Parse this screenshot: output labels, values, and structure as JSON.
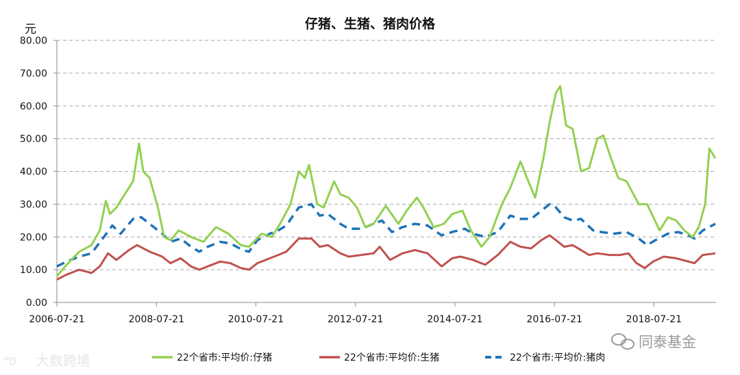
{
  "chart_data": {
    "type": "line",
    "title": "仔猪、生猪、猪肉价格",
    "ylabel": "元",
    "xlabel": "",
    "ylim": [
      0,
      80
    ],
    "y_ticks": [
      "0.00",
      "10.00",
      "20.00",
      "30.00",
      "40.00",
      "50.00",
      "60.00",
      "70.00",
      "80.00"
    ],
    "x_ticks": [
      "2006-07-21",
      "2008-07-21",
      "2010-07-21",
      "2012-07-21",
      "2014-07-21",
      "2016-07-21",
      "2018-07-21"
    ],
    "grid": "horizontal-dashed",
    "legend_position": "bottom",
    "series": [
      {
        "name": "22个省市:平均价:仔猪",
        "color": "#92D050",
        "style": "solid",
        "points": [
          [
            "2006-07-21",
            8.0
          ],
          [
            "2006-10-01",
            11.5
          ],
          [
            "2007-01-01",
            15.5
          ],
          [
            "2007-04-01",
            17.5
          ],
          [
            "2007-06-01",
            22.0
          ],
          [
            "2007-07-15",
            31.0
          ],
          [
            "2007-08-15",
            27.0
          ],
          [
            "2007-10-01",
            29.0
          ],
          [
            "2007-12-01",
            33.0
          ],
          [
            "2008-02-01",
            37.0
          ],
          [
            "2008-03-15",
            48.5
          ],
          [
            "2008-04-15",
            40.0
          ],
          [
            "2008-06-01",
            38.0
          ],
          [
            "2008-08-01",
            29.0
          ],
          [
            "2008-09-15",
            20.0
          ],
          [
            "2008-11-01",
            19.0
          ],
          [
            "2009-01-01",
            22.0
          ],
          [
            "2009-04-01",
            20.0
          ],
          [
            "2009-07-01",
            18.5
          ],
          [
            "2009-10-01",
            23.0
          ],
          [
            "2010-01-01",
            21.0
          ],
          [
            "2010-04-01",
            17.5
          ],
          [
            "2010-06-01",
            17.0
          ],
          [
            "2010-09-01",
            21.0
          ],
          [
            "2010-11-15",
            20.0
          ],
          [
            "2011-01-15",
            24.0
          ],
          [
            "2011-04-01",
            30.0
          ],
          [
            "2011-06-01",
            40.0
          ],
          [
            "2011-07-15",
            38.0
          ],
          [
            "2011-08-15",
            42.0
          ],
          [
            "2011-10-15",
            30.0
          ],
          [
            "2011-12-01",
            29.0
          ],
          [
            "2012-02-15",
            37.0
          ],
          [
            "2012-04-01",
            33.0
          ],
          [
            "2012-06-01",
            32.0
          ],
          [
            "2012-08-01",
            29.0
          ],
          [
            "2012-10-01",
            23.0
          ],
          [
            "2012-12-01",
            24.0
          ],
          [
            "2013-03-01",
            29.5
          ],
          [
            "2013-06-01",
            24.0
          ],
          [
            "2013-08-01",
            28.0
          ],
          [
            "2013-10-15",
            32.0
          ],
          [
            "2013-12-01",
            29.0
          ],
          [
            "2014-02-15",
            23.0
          ],
          [
            "2014-05-01",
            24.0
          ],
          [
            "2014-07-01",
            27.0
          ],
          [
            "2014-09-15",
            28.0
          ],
          [
            "2014-11-15",
            22.0
          ],
          [
            "2015-02-01",
            17.0
          ],
          [
            "2015-04-01",
            20.0
          ],
          [
            "2015-07-01",
            30.0
          ],
          [
            "2015-09-01",
            35.0
          ],
          [
            "2015-11-15",
            43.0
          ],
          [
            "2016-01-01",
            38.0
          ],
          [
            "2016-03-01",
            32.0
          ],
          [
            "2016-05-01",
            44.0
          ],
          [
            "2016-06-15",
            55.0
          ],
          [
            "2016-08-01",
            64.0
          ],
          [
            "2016-09-01",
            66.0
          ],
          [
            "2016-10-15",
            54.0
          ],
          [
            "2016-12-01",
            53.0
          ],
          [
            "2017-02-01",
            40.0
          ],
          [
            "2017-04-01",
            41.0
          ],
          [
            "2017-06-01",
            50.0
          ],
          [
            "2017-07-15",
            51.0
          ],
          [
            "2017-09-01",
            45.0
          ],
          [
            "2017-11-01",
            38.0
          ],
          [
            "2018-01-01",
            37.0
          ],
          [
            "2018-04-01",
            30.0
          ],
          [
            "2018-06-01",
            30.0
          ],
          [
            "2018-09-01",
            22.0
          ],
          [
            "2018-11-01",
            26.0
          ],
          [
            "2019-01-01",
            25.0
          ],
          [
            "2019-03-01",
            22.0
          ],
          [
            "2019-05-01",
            20.0
          ],
          [
            "2019-06-15",
            23.0
          ],
          [
            "2019-08-01",
            30.0
          ],
          [
            "2019-09-01",
            47.0
          ],
          [
            "2019-10-15",
            44.0
          ]
        ]
      },
      {
        "name": "22个省市:平均价:生猪",
        "color": "#C0504D",
        "style": "solid",
        "points": [
          [
            "2006-07-21",
            7.0
          ],
          [
            "2006-10-01",
            8.5
          ],
          [
            "2007-01-01",
            10.0
          ],
          [
            "2007-04-01",
            9.0
          ],
          [
            "2007-06-01",
            11.0
          ],
          [
            "2007-08-01",
            15.0
          ],
          [
            "2007-10-01",
            13.0
          ],
          [
            "2008-01-01",
            16.0
          ],
          [
            "2008-03-01",
            17.5
          ],
          [
            "2008-06-01",
            15.5
          ],
          [
            "2008-09-01",
            14.0
          ],
          [
            "2008-11-01",
            12.0
          ],
          [
            "2009-01-15",
            13.5
          ],
          [
            "2009-04-01",
            11.0
          ],
          [
            "2009-06-01",
            10.0
          ],
          [
            "2009-08-01",
            11.0
          ],
          [
            "2009-11-01",
            12.5
          ],
          [
            "2010-01-15",
            12.0
          ],
          [
            "2010-04-01",
            10.5
          ],
          [
            "2010-06-01",
            10.0
          ],
          [
            "2010-08-01",
            12.0
          ],
          [
            "2010-11-01",
            13.5
          ],
          [
            "2011-01-01",
            14.5
          ],
          [
            "2011-03-01",
            15.5
          ],
          [
            "2011-06-01",
            19.5
          ],
          [
            "2011-09-01",
            19.5
          ],
          [
            "2011-11-01",
            17.0
          ],
          [
            "2012-01-01",
            17.5
          ],
          [
            "2012-04-01",
            15.0
          ],
          [
            "2012-06-01",
            14.0
          ],
          [
            "2012-09-01",
            14.5
          ],
          [
            "2012-12-01",
            15.0
          ],
          [
            "2013-01-15",
            17.0
          ],
          [
            "2013-04-01",
            13.0
          ],
          [
            "2013-07-01",
            15.0
          ],
          [
            "2013-10-01",
            16.0
          ],
          [
            "2014-01-01",
            15.0
          ],
          [
            "2014-04-15",
            11.0
          ],
          [
            "2014-07-01",
            13.5
          ],
          [
            "2014-09-01",
            14.0
          ],
          [
            "2014-12-01",
            13.0
          ],
          [
            "2015-03-01",
            11.5
          ],
          [
            "2015-06-01",
            14.5
          ],
          [
            "2015-09-01",
            18.5
          ],
          [
            "2015-11-15",
            17.0
          ],
          [
            "2016-02-01",
            16.5
          ],
          [
            "2016-04-15",
            19.0
          ],
          [
            "2016-06-15",
            20.5
          ],
          [
            "2016-08-01",
            19.0
          ],
          [
            "2016-10-01",
            17.0
          ],
          [
            "2016-12-01",
            17.5
          ],
          [
            "2017-02-01",
            16.0
          ],
          [
            "2017-04-01",
            14.5
          ],
          [
            "2017-06-01",
            15.0
          ],
          [
            "2017-09-01",
            14.5
          ],
          [
            "2017-11-15",
            14.5
          ],
          [
            "2018-01-15",
            15.0
          ],
          [
            "2018-03-15",
            12.0
          ],
          [
            "2018-05-15",
            10.5
          ],
          [
            "2018-07-15",
            12.5
          ],
          [
            "2018-10-01",
            14.0
          ],
          [
            "2019-01-01",
            13.5
          ],
          [
            "2019-04-01",
            12.5
          ],
          [
            "2019-05-15",
            12.0
          ],
          [
            "2019-07-15",
            14.5
          ],
          [
            "2019-10-15",
            15.0
          ]
        ]
      },
      {
        "name": "22个省市:平均价:猪肉",
        "color": "#1F73B7",
        "style": "dashed",
        "points": [
          [
            "2006-07-21",
            11.0
          ],
          [
            "2006-10-01",
            12.5
          ],
          [
            "2007-01-01",
            14.0
          ],
          [
            "2007-04-01",
            15.0
          ],
          [
            "2007-07-01",
            20.0
          ],
          [
            "2007-09-01",
            23.5
          ],
          [
            "2007-11-01",
            21.0
          ],
          [
            "2008-02-01",
            25.5
          ],
          [
            "2008-04-01",
            26.0
          ],
          [
            "2008-06-01",
            24.0
          ],
          [
            "2008-09-01",
            21.0
          ],
          [
            "2008-11-01",
            18.5
          ],
          [
            "2009-01-15",
            19.5
          ],
          [
            "2009-04-01",
            17.0
          ],
          [
            "2009-06-01",
            15.5
          ],
          [
            "2009-08-01",
            17.0
          ],
          [
            "2009-11-01",
            18.5
          ],
          [
            "2010-01-15",
            18.0
          ],
          [
            "2010-04-15",
            16.0
          ],
          [
            "2010-06-01",
            15.5
          ],
          [
            "2010-08-01",
            19.0
          ],
          [
            "2010-11-01",
            21.0
          ],
          [
            "2011-01-01",
            22.0
          ],
          [
            "2011-03-01",
            23.5
          ],
          [
            "2011-06-01",
            29.0
          ],
          [
            "2011-09-01",
            30.0
          ],
          [
            "2011-11-01",
            26.5
          ],
          [
            "2012-01-01",
            27.0
          ],
          [
            "2012-04-01",
            24.0
          ],
          [
            "2012-06-01",
            22.5
          ],
          [
            "2012-09-01",
            22.5
          ],
          [
            "2012-12-01",
            24.0
          ],
          [
            "2013-02-01",
            25.0
          ],
          [
            "2013-04-15",
            21.5
          ],
          [
            "2013-07-01",
            23.0
          ],
          [
            "2013-10-01",
            24.0
          ],
          [
            "2014-01-01",
            23.5
          ],
          [
            "2014-04-15",
            20.5
          ],
          [
            "2014-07-01",
            21.5
          ],
          [
            "2014-10-01",
            22.5
          ],
          [
            "2014-12-01",
            21.0
          ],
          [
            "2015-03-01",
            20.0
          ],
          [
            "2015-06-01",
            21.5
          ],
          [
            "2015-09-01",
            26.5
          ],
          [
            "2015-11-15",
            25.5
          ],
          [
            "2016-02-01",
            25.5
          ],
          [
            "2016-04-15",
            28.0
          ],
          [
            "2016-06-15",
            30.0
          ],
          [
            "2016-08-01",
            29.0
          ],
          [
            "2016-10-01",
            26.0
          ],
          [
            "2016-12-01",
            25.0
          ],
          [
            "2017-02-01",
            25.5
          ],
          [
            "2017-05-01",
            22.0
          ],
          [
            "2017-07-01",
            21.5
          ],
          [
            "2017-10-01",
            21.0
          ],
          [
            "2018-01-01",
            21.5
          ],
          [
            "2018-04-01",
            19.5
          ],
          [
            "2018-06-01",
            17.5
          ],
          [
            "2018-08-01",
            19.0
          ],
          [
            "2018-11-01",
            21.0
          ],
          [
            "2019-01-15",
            21.5
          ],
          [
            "2019-04-01",
            20.5
          ],
          [
            "2019-05-15",
            19.5
          ],
          [
            "2019-07-15",
            22.0
          ],
          [
            "2019-10-15",
            24.0
          ]
        ]
      }
    ]
  },
  "watermarks": {
    "left": "大数跨境",
    "right": "同泰基金"
  }
}
